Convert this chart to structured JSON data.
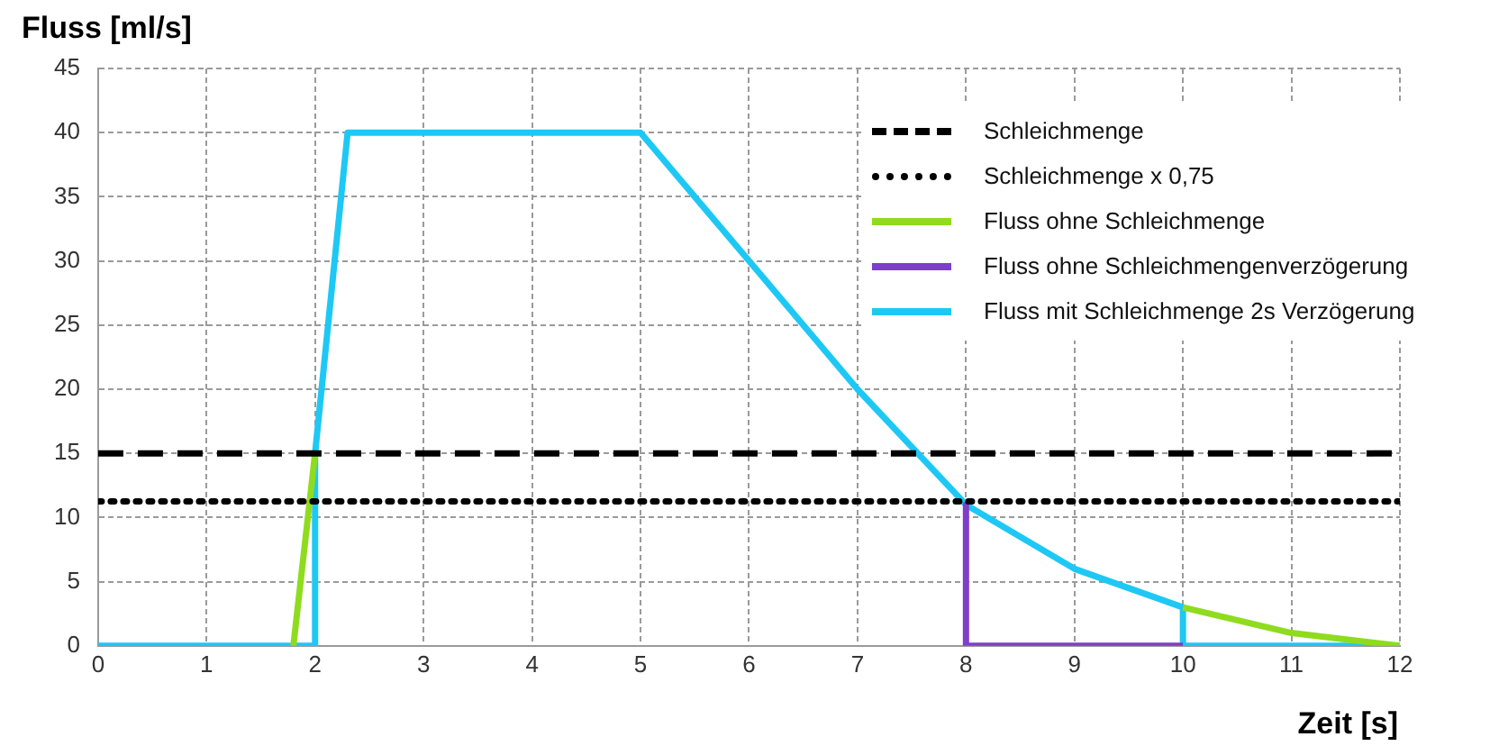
{
  "chart_data": {
    "type": "line",
    "xlabel": "Zeit [s]",
    "ylabel": "Fluss [ml/s]",
    "xlim": [
      0,
      12
    ],
    "xticks": [
      0,
      1,
      2,
      3,
      4,
      5,
      6,
      7,
      8,
      9,
      10,
      11,
      12
    ],
    "ylim": [
      0,
      45
    ],
    "yticks": [
      0,
      5,
      10,
      15,
      20,
      25,
      30,
      35,
      40,
      45
    ],
    "grid": true,
    "legend": "top right",
    "marker": "none",
    "series": [
      {
        "name": "Schleichmenge",
        "color": "#000000",
        "line_style": "dashed",
        "x": [
          0,
          12
        ],
        "values": [
          15,
          15
        ]
      },
      {
        "name": "Schleichmenge x 0,75",
        "color": "#000000",
        "line_style": "dotted",
        "x": [
          0,
          12
        ],
        "values": [
          11.25,
          11.25
        ]
      },
      {
        "name": "Fluss ohne Schleichmenge",
        "color": "#8fdc1e",
        "line_style": "solid",
        "x": [
          1.8,
          2,
          5,
          10,
          11,
          12
        ],
        "values": [
          0,
          15,
          null,
          3,
          1,
          0
        ]
      },
      {
        "name": "Fluss ohne Schleichmengenverzögerung",
        "color": "#7d3fc8",
        "line_style": "solid",
        "x": [
          8,
          8,
          10
        ],
        "values": [
          11,
          0,
          0
        ]
      },
      {
        "name": "Fluss mit Schleichmenge 2s Verzögerung",
        "color": "#1ec8f5",
        "line_style": "solid",
        "x": [
          0,
          2,
          2,
          2.3,
          5,
          6,
          7,
          8,
          9,
          10,
          10,
          12
        ],
        "values": [
          0,
          0,
          15,
          40,
          40,
          30,
          20,
          11,
          6,
          3,
          0,
          0
        ]
      }
    ]
  }
}
